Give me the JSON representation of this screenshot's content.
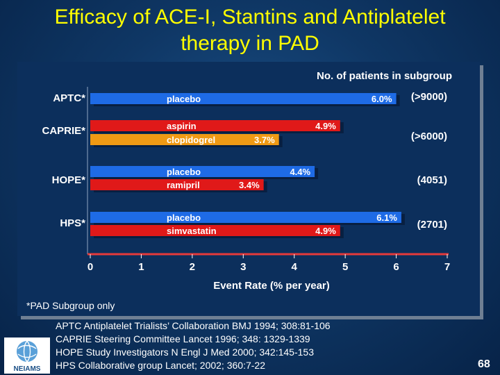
{
  "slide": {
    "title_line1": "Efficacy of ACE-I, Stantins and Antiplatelet",
    "title_line2": "therapy in PAD",
    "footnote": "*PAD Subgroup only",
    "references": [
      "APTC Antiplatelet Trialists’ Collaboration BMJ 1994; 308:81-106",
      "CAPRIE Steering Committee   Lancet 1996; 348: 1329-1339",
      "HOPE Study Investigators  N Engl J Med  2000; 342:145-153",
      "HPS Collaborative group  Lancet; 2002; 360:7-22"
    ],
    "logo_text": "NEIAMS",
    "page_number": "68"
  },
  "chart_data": {
    "type": "bar",
    "orientation": "horizontal",
    "xlabel": "Event Rate (% per year)",
    "xlim": [
      0,
      7
    ],
    "xticks": [
      "0",
      "1",
      "2",
      "3",
      "4",
      "5",
      "6",
      "7"
    ],
    "subgroup_header": "No. of patients in subgroup",
    "colors": {
      "blue": "#1e6be6",
      "red": "#e01919",
      "orange": "#f09a14",
      "axis": "#ffffff",
      "header_text": "#ffffff",
      "bar_label": "#ffffff"
    },
    "groups": [
      {
        "name": "APTC*",
        "n_patients": "(>9000)",
        "bars": [
          {
            "label": "placebo",
            "value": 6.0,
            "value_label": "6.0%",
            "color": "blue"
          }
        ]
      },
      {
        "name": "CAPRIE*",
        "n_patients": "(>6000)",
        "bars": [
          {
            "label": "aspirin",
            "value": 4.9,
            "value_label": "4.9%",
            "color": "red"
          },
          {
            "label": "clopidogrel",
            "value": 3.7,
            "value_label": "3.7%",
            "color": "orange"
          }
        ]
      },
      {
        "name": "HOPE*",
        "n_patients": "(4051)",
        "bars": [
          {
            "label": "placebo",
            "value": 4.4,
            "value_label": "4.4%",
            "color": "blue"
          },
          {
            "label": "ramipril",
            "value": 3.4,
            "value_label": "3.4%",
            "color": "red"
          }
        ]
      },
      {
        "name": "HPS*",
        "n_patients": "(2701)",
        "bars": [
          {
            "label": "placebo",
            "value": 6.1,
            "value_label": "6.1%",
            "color": "blue"
          },
          {
            "label": "simvastatin",
            "value": 4.9,
            "value_label": "4.9%",
            "color": "red"
          }
        ]
      }
    ]
  }
}
